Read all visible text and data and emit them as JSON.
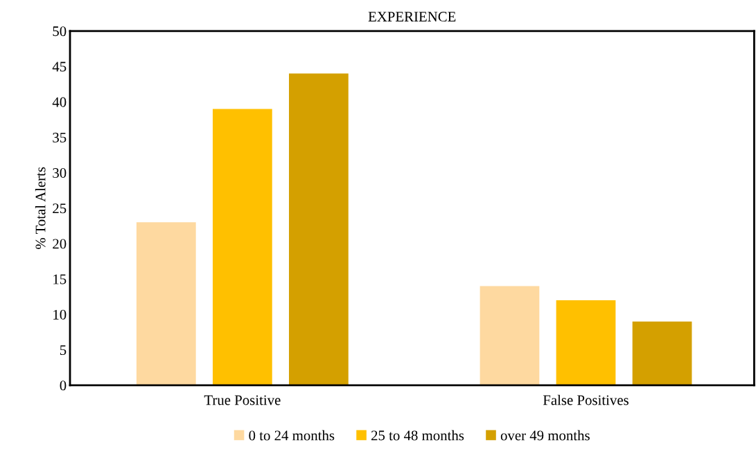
{
  "chart_data": {
    "type": "bar",
    "title": "EXPERIENCE",
    "ylabel": "% Total Alerts",
    "categories": [
      "True Positive",
      "False Positives"
    ],
    "series": [
      {
        "name": "0 to 24 months",
        "color": "#fed9a0",
        "values": [
          23,
          14
        ]
      },
      {
        "name": "25 to 48 months",
        "color": "#ffc000",
        "values": [
          39,
          12
        ]
      },
      {
        "name": "over 49 months",
        "color": "#d4a000",
        "values": [
          44,
          9
        ]
      }
    ],
    "ylim": [
      0,
      50
    ],
    "yticks": [
      0,
      5,
      10,
      15,
      20,
      25,
      30,
      35,
      40,
      45,
      50
    ],
    "grid": false,
    "legend": "bottom"
  }
}
